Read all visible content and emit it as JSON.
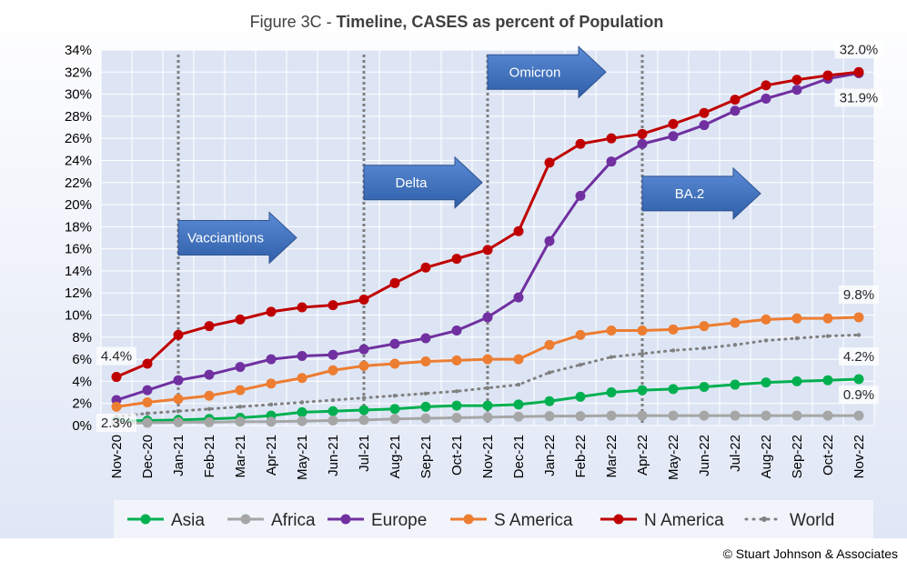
{
  "title_prefix": "Figure 3C - ",
  "title_bold": "Timeline, CASES as percent of Population",
  "copyright": "© Stuart Johnson & Associates",
  "chart_data": {
    "type": "line",
    "ylim": [
      0,
      34
    ],
    "y_ticks": [
      "0%",
      "2%",
      "4%",
      "6%",
      "8%",
      "10%",
      "12%",
      "14%",
      "16%",
      "18%",
      "20%",
      "22%",
      "24%",
      "26%",
      "28%",
      "30%",
      "32%",
      "34%"
    ],
    "categories": [
      "Nov-20",
      "Dec-20",
      "Jan-21",
      "Feb-21",
      "Mar-21",
      "Apr-21",
      "May-21",
      "Jun-21",
      "Jul-21",
      "Aug-21",
      "Sep-21",
      "Oct-21",
      "Nov-21",
      "Dec-21",
      "Jan-22",
      "Feb-22",
      "Mar-22",
      "Apr-22",
      "May-22",
      "Jun-22",
      "Jul-22",
      "Aug-22",
      "Sep-22",
      "Oct-22",
      "Nov-22"
    ],
    "legend_position": "bottom",
    "grid": true,
    "series": [
      {
        "name": "Asia",
        "color": "#00b050",
        "style": "solid",
        "values": [
          0.4,
          0.45,
          0.5,
          0.6,
          0.7,
          0.9,
          1.2,
          1.3,
          1.4,
          1.5,
          1.7,
          1.8,
          1.8,
          1.9,
          2.2,
          2.6,
          3.0,
          3.2,
          3.3,
          3.5,
          3.7,
          3.9,
          4.0,
          4.1,
          4.2
        ]
      },
      {
        "name": "Africa",
        "color": "#a6a6a6",
        "style": "solid",
        "values": [
          0.2,
          0.25,
          0.3,
          0.3,
          0.35,
          0.35,
          0.4,
          0.45,
          0.5,
          0.6,
          0.65,
          0.7,
          0.75,
          0.8,
          0.85,
          0.85,
          0.9,
          0.9,
          0.9,
          0.9,
          0.9,
          0.9,
          0.9,
          0.9,
          0.9
        ]
      },
      {
        "name": "Europe",
        "color": "#7030a0",
        "style": "solid",
        "values": [
          2.3,
          3.2,
          4.1,
          4.6,
          5.3,
          6.0,
          6.3,
          6.4,
          6.9,
          7.4,
          7.9,
          8.6,
          9.8,
          11.6,
          16.7,
          20.8,
          23.9,
          25.5,
          26.2,
          27.2,
          28.5,
          29.6,
          30.4,
          31.4,
          31.9
        ]
      },
      {
        "name": "S America",
        "color": "#ed7d31",
        "style": "solid",
        "values": [
          1.7,
          2.1,
          2.4,
          2.7,
          3.2,
          3.8,
          4.3,
          5.0,
          5.4,
          5.6,
          5.8,
          5.9,
          6.0,
          6.0,
          7.3,
          8.2,
          8.6,
          8.6,
          8.7,
          9.0,
          9.3,
          9.6,
          9.7,
          9.7,
          9.8
        ]
      },
      {
        "name": "N America",
        "color": "#c00000",
        "style": "solid",
        "values": [
          4.4,
          5.6,
          8.2,
          9.0,
          9.6,
          10.3,
          10.7,
          10.9,
          11.4,
          12.9,
          14.3,
          15.1,
          15.9,
          17.6,
          23.8,
          25.5,
          26.0,
          26.4,
          27.3,
          28.3,
          29.5,
          30.8,
          31.3,
          31.7,
          32.0
        ]
      },
      {
        "name": "World",
        "color": "#808080",
        "style": "dotted",
        "values": [
          0.8,
          1.1,
          1.3,
          1.5,
          1.7,
          1.9,
          2.1,
          2.3,
          2.5,
          2.7,
          2.9,
          3.1,
          3.4,
          3.7,
          4.8,
          5.5,
          6.2,
          6.5,
          6.8,
          7.0,
          7.3,
          7.7,
          7.9,
          8.1,
          8.2
        ]
      }
    ],
    "data_labels": [
      {
        "text": "4.4%",
        "series": "N America",
        "index": 0
      },
      {
        "text": "2.3%",
        "series": "Europe",
        "index": 0
      },
      {
        "text": "32.0%",
        "series": "N America",
        "index": 24
      },
      {
        "text": "31.9%",
        "series": "Europe",
        "index": 24
      },
      {
        "text": "9.8%",
        "series": "S America",
        "index": 24
      },
      {
        "text": "4.2%",
        "series": "Asia",
        "index": 24
      },
      {
        "text": "0.9%",
        "series": "Africa",
        "index": 24
      }
    ],
    "events": [
      {
        "category": "Jan-21",
        "label": "Vacciantions",
        "label_y": 17
      },
      {
        "category": "Jul-21",
        "label": "Delta",
        "label_y": 22
      },
      {
        "category": "Nov-21",
        "label": "Omicron",
        "label_y": 32
      },
      {
        "category": "Apr-22",
        "label": "BA.2",
        "label_y": 21
      }
    ]
  }
}
